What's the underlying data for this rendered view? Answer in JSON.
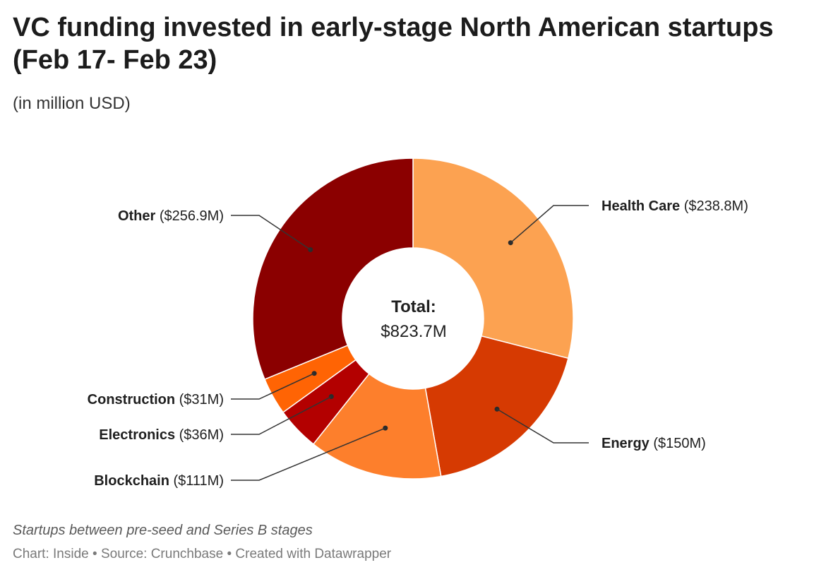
{
  "header": {
    "title": "VC funding invested in early-stage North American startups (Feb 17- Feb 23)",
    "subtitle": "(in million USD)"
  },
  "center": {
    "title": "Total:",
    "value": "$823.7M"
  },
  "notes": "Startups between pre-seed and Series B stages",
  "footer": {
    "chart_by": "Chart: Inside",
    "separator": " • ",
    "source": "Source: Crunchbase",
    "created_with": "Created with Datawrapper"
  },
  "chart_data": {
    "type": "pie",
    "variant": "donut",
    "title": "VC funding invested in early-stage North American startups (Feb 17- Feb 23)",
    "subtitle": "(in million USD)",
    "total_label": "$823.7M",
    "slices": [
      {
        "name": "Health Care",
        "value": 238.8,
        "value_label": "($238.8M)",
        "color": "#fca251"
      },
      {
        "name": "Energy",
        "value": 150,
        "value_label": "($150M)",
        "color": "#d63a02"
      },
      {
        "name": "Blockchain",
        "value": 111,
        "value_label": "($111M)",
        "color": "#fd7f2c"
      },
      {
        "name": "Electronics",
        "value": 36,
        "value_label": "($36M)",
        "color": "#b30000"
      },
      {
        "name": "Construction",
        "value": 31,
        "value_label": "($31M)",
        "color": "#ff6404"
      },
      {
        "name": "Other",
        "value": 256.9,
        "value_label": "($256.9M)",
        "color": "#8b0000"
      }
    ]
  }
}
